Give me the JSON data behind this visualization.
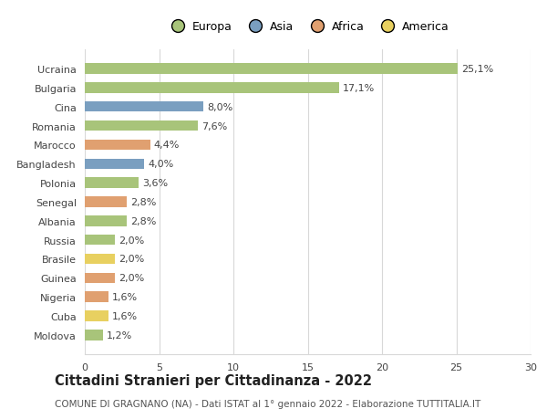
{
  "countries": [
    "Ucraina",
    "Bulgaria",
    "Cina",
    "Romania",
    "Marocco",
    "Bangladesh",
    "Polonia",
    "Senegal",
    "Albania",
    "Russia",
    "Brasile",
    "Guinea",
    "Nigeria",
    "Cuba",
    "Moldova"
  ],
  "values": [
    25.1,
    17.1,
    8.0,
    7.6,
    4.4,
    4.0,
    3.6,
    2.8,
    2.8,
    2.0,
    2.0,
    2.0,
    1.6,
    1.6,
    1.2
  ],
  "labels": [
    "25,1%",
    "17,1%",
    "8,0%",
    "7,6%",
    "4,4%",
    "4,0%",
    "3,6%",
    "2,8%",
    "2,8%",
    "2,0%",
    "2,0%",
    "2,0%",
    "1,6%",
    "1,6%",
    "1,2%"
  ],
  "continents": [
    "Europa",
    "Europa",
    "Asia",
    "Europa",
    "Africa",
    "Asia",
    "Europa",
    "Africa",
    "Europa",
    "Europa",
    "America",
    "Africa",
    "Africa",
    "America",
    "Europa"
  ],
  "colors": {
    "Europa": "#a8c47a",
    "Asia": "#7a9fc0",
    "Africa": "#e0a070",
    "America": "#e8d060"
  },
  "xlim": [
    0,
    30
  ],
  "xticks": [
    0,
    5,
    10,
    15,
    20,
    25,
    30
  ],
  "title": "Cittadini Stranieri per Cittadinanza - 2022",
  "subtitle": "COMUNE DI GRAGNANO (NA) - Dati ISTAT al 1° gennaio 2022 - Elaborazione TUTTITALIA.IT",
  "background_color": "#ffffff",
  "grid_color": "#d8d8d8",
  "bar_height": 0.55,
  "title_fontsize": 10.5,
  "subtitle_fontsize": 7.5,
  "label_fontsize": 8,
  "tick_fontsize": 8,
  "legend_fontsize": 9
}
